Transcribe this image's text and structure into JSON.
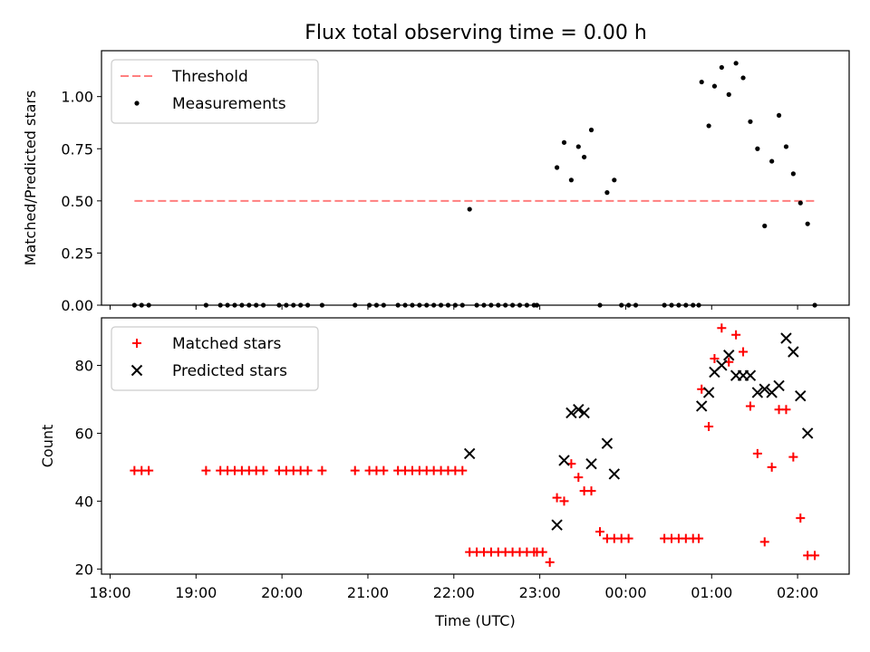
{
  "chart_data": [
    {
      "type": "line+scatter",
      "title": "Flux total observing time = 0.00 h",
      "xlabel": "",
      "ylabel": "Matched/Predicted stars",
      "ylim": [
        0,
        1.22
      ],
      "yticks": [
        "0.00",
        "0.25",
        "0.50",
        "0.75",
        "1.00"
      ],
      "grid": false,
      "legend_placement": "top-left",
      "threshold": {
        "name": "Threshold",
        "value": 0.5,
        "x_start": "18:17",
        "x_end": "02:12",
        "color": "#ff7f7f",
        "style": "dashed"
      },
      "series": [
        {
          "name": "Measurements",
          "color": "#000000",
          "marker": "dot",
          "points": [
            [
              "18:17",
              0
            ],
            [
              "18:22",
              0
            ],
            [
              "18:27",
              0
            ],
            [
              "19:07",
              0
            ],
            [
              "19:17",
              0
            ],
            [
              "19:22",
              0
            ],
            [
              "19:27",
              0
            ],
            [
              "19:32",
              0
            ],
            [
              "19:37",
              0
            ],
            [
              "19:42",
              0
            ],
            [
              "19:47",
              0
            ],
            [
              "19:58",
              0
            ],
            [
              "20:03",
              0
            ],
            [
              "20:08",
              0
            ],
            [
              "20:13",
              0
            ],
            [
              "20:18",
              0
            ],
            [
              "20:28",
              0
            ],
            [
              "20:51",
              0
            ],
            [
              "21:01",
              0
            ],
            [
              "21:06",
              0
            ],
            [
              "21:11",
              0
            ],
            [
              "21:21",
              0
            ],
            [
              "21:26",
              0
            ],
            [
              "21:31",
              0
            ],
            [
              "21:36",
              0
            ],
            [
              "21:41",
              0
            ],
            [
              "21:46",
              0
            ],
            [
              "21:51",
              0
            ],
            [
              "21:56",
              0
            ],
            [
              "22:01",
              0
            ],
            [
              "22:06",
              0
            ],
            [
              "22:11",
              0.46
            ],
            [
              "22:16",
              0
            ],
            [
              "22:21",
              0
            ],
            [
              "22:26",
              0
            ],
            [
              "22:31",
              0
            ],
            [
              "22:36",
              0
            ],
            [
              "22:41",
              0
            ],
            [
              "22:46",
              0
            ],
            [
              "22:51",
              0
            ],
            [
              "22:56",
              0
            ],
            [
              "22:58",
              0
            ],
            [
              "23:12",
              0.66
            ],
            [
              "23:17",
              0.78
            ],
            [
              "23:22",
              0.6
            ],
            [
              "23:27",
              0.76
            ],
            [
              "23:31",
              0.71
            ],
            [
              "23:36",
              0.84
            ],
            [
              "23:42",
              0
            ],
            [
              "23:47",
              0.54
            ],
            [
              "23:52",
              0.6
            ],
            [
              "23:57",
              0
            ],
            [
              "00:02",
              0
            ],
            [
              "00:07",
              0
            ],
            [
              "00:27",
              0
            ],
            [
              "00:32",
              0
            ],
            [
              "00:37",
              0
            ],
            [
              "00:42",
              0
            ],
            [
              "00:47",
              0
            ],
            [
              "00:51",
              0
            ],
            [
              "00:53",
              1.07
            ],
            [
              "00:58",
              0.86
            ],
            [
              "01:02",
              1.05
            ],
            [
              "01:07",
              1.14
            ],
            [
              "01:12",
              1.01
            ],
            [
              "01:17",
              1.16
            ],
            [
              "01:22",
              1.09
            ],
            [
              "01:27",
              0.88
            ],
            [
              "01:32",
              0.75
            ],
            [
              "01:37",
              0.38
            ],
            [
              "01:42",
              0.69
            ],
            [
              "01:47",
              0.91
            ],
            [
              "01:52",
              0.76
            ],
            [
              "01:57",
              0.63
            ],
            [
              "02:02",
              0.49
            ],
            [
              "02:07",
              0.39
            ],
            [
              "02:12",
              0
            ]
          ]
        }
      ]
    },
    {
      "type": "scatter",
      "title": "",
      "xlabel": "Time (UTC)",
      "ylabel": "Count",
      "ylim": [
        18.5,
        94
      ],
      "yticks": [
        "20",
        "40",
        "60",
        "80"
      ],
      "xticks": [
        "18:00",
        "19:00",
        "20:00",
        "21:00",
        "22:00",
        "23:00",
        "00:00",
        "01:00",
        "02:00"
      ],
      "grid": false,
      "legend_placement": "top-left",
      "series": [
        {
          "name": "Matched stars",
          "color": "#ff0000",
          "marker": "plus",
          "points": [
            [
              "18:17",
              49
            ],
            [
              "18:22",
              49
            ],
            [
              "18:27",
              49
            ],
            [
              "19:07",
              49
            ],
            [
              "19:17",
              49
            ],
            [
              "19:22",
              49
            ],
            [
              "19:27",
              49
            ],
            [
              "19:32",
              49
            ],
            [
              "19:37",
              49
            ],
            [
              "19:42",
              49
            ],
            [
              "19:47",
              49
            ],
            [
              "19:58",
              49
            ],
            [
              "20:03",
              49
            ],
            [
              "20:08",
              49
            ],
            [
              "20:13",
              49
            ],
            [
              "20:18",
              49
            ],
            [
              "20:28",
              49
            ],
            [
              "20:51",
              49
            ],
            [
              "21:01",
              49
            ],
            [
              "21:06",
              49
            ],
            [
              "21:11",
              49
            ],
            [
              "21:21",
              49
            ],
            [
              "21:26",
              49
            ],
            [
              "21:31",
              49
            ],
            [
              "21:36",
              49
            ],
            [
              "21:41",
              49
            ],
            [
              "21:46",
              49
            ],
            [
              "21:51",
              49
            ],
            [
              "21:56",
              49
            ],
            [
              "22:01",
              49
            ],
            [
              "22:06",
              49
            ],
            [
              "22:11",
              25
            ],
            [
              "22:16",
              25
            ],
            [
              "22:21",
              25
            ],
            [
              "22:26",
              25
            ],
            [
              "22:31",
              25
            ],
            [
              "22:36",
              25
            ],
            [
              "22:41",
              25
            ],
            [
              "22:46",
              25
            ],
            [
              "22:51",
              25
            ],
            [
              "22:56",
              25
            ],
            [
              "22:58",
              25
            ],
            [
              "23:02",
              25
            ],
            [
              "23:07",
              22
            ],
            [
              "23:12",
              41
            ],
            [
              "23:17",
              40
            ],
            [
              "23:22",
              51
            ],
            [
              "23:27",
              47
            ],
            [
              "23:31",
              43
            ],
            [
              "23:36",
              43
            ],
            [
              "23:42",
              31
            ],
            [
              "23:47",
              29
            ],
            [
              "23:52",
              29
            ],
            [
              "23:57",
              29
            ],
            [
              "00:02",
              29
            ],
            [
              "00:27",
              29
            ],
            [
              "00:32",
              29
            ],
            [
              "00:37",
              29
            ],
            [
              "00:42",
              29
            ],
            [
              "00:47",
              29
            ],
            [
              "00:51",
              29
            ],
            [
              "00:53",
              73
            ],
            [
              "00:58",
              62
            ],
            [
              "01:02",
              82
            ],
            [
              "01:07",
              91
            ],
            [
              "01:12",
              81
            ],
            [
              "01:17",
              89
            ],
            [
              "01:22",
              84
            ],
            [
              "01:27",
              68
            ],
            [
              "01:32",
              54
            ],
            [
              "01:37",
              28
            ],
            [
              "01:42",
              50
            ],
            [
              "01:47",
              67
            ],
            [
              "01:52",
              67
            ],
            [
              "01:57",
              53
            ],
            [
              "02:02",
              35
            ],
            [
              "02:07",
              24
            ],
            [
              "02:12",
              24
            ]
          ]
        },
        {
          "name": "Predicted stars",
          "color": "#000000",
          "marker": "x",
          "points": [
            [
              "22:11",
              54
            ],
            [
              "23:12",
              33
            ],
            [
              "23:17",
              52
            ],
            [
              "23:22",
              66
            ],
            [
              "23:27",
              67
            ],
            [
              "23:31",
              66
            ],
            [
              "23:36",
              51
            ],
            [
              "23:47",
              57
            ],
            [
              "23:52",
              48
            ],
            [
              "00:53",
              68
            ],
            [
              "00:58",
              72
            ],
            [
              "01:02",
              78
            ],
            [
              "01:07",
              80
            ],
            [
              "01:12",
              83
            ],
            [
              "01:17",
              77
            ],
            [
              "01:22",
              77
            ],
            [
              "01:27",
              77
            ],
            [
              "01:32",
              72
            ],
            [
              "01:37",
              73
            ],
            [
              "01:42",
              72
            ],
            [
              "01:47",
              74
            ],
            [
              "01:52",
              88
            ],
            [
              "01:57",
              84
            ],
            [
              "02:02",
              71
            ],
            [
              "02:07",
              60
            ]
          ]
        }
      ]
    }
  ]
}
